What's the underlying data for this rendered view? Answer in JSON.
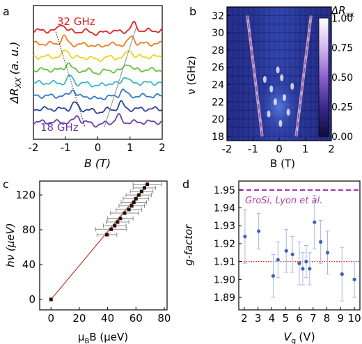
{
  "panel_labels": {
    "a": "a",
    "b": "b",
    "c": "c",
    "d": "d"
  },
  "chart_data": [
    {
      "panel": "a",
      "type": "line",
      "ylabel_main": "ΔR",
      "ylabel_sub": "XX",
      "ylabel_unit": "(a. u.)",
      "xlabel": "B (T)",
      "xlim": [
        -2,
        2
      ],
      "xticks": [
        "-2",
        "-1",
        "0",
        "1",
        "2"
      ],
      "annotation_top": "32 GHz",
      "annotation_bottom": "18 GHz",
      "series": [
        {
          "color": "#e0201f",
          "offset": 8,
          "peak_B": 1.12
        },
        {
          "color": "#f07b1c",
          "offset": 7,
          "peak_B": 1.05
        },
        {
          "color": "#f2d21a",
          "offset": 6,
          "peak_B": 0.98
        },
        {
          "color": "#62c23a",
          "offset": 5,
          "peak_B": 0.92
        },
        {
          "color": "#34b7c9",
          "offset": 4,
          "peak_B": 0.85
        },
        {
          "color": "#2d79c4",
          "offset": 3,
          "peak_B": 0.78
        },
        {
          "color": "#273f9a",
          "offset": 2,
          "peak_B": 0.72
        },
        {
          "color": "#6b3aa8",
          "offset": 1,
          "peak_B": 0.64
        }
      ],
      "guide_lines": [
        {
          "style": "dotted",
          "from": [
            -1.3,
            7.9
          ],
          "to": [
            -0.4,
            0.6
          ]
        },
        {
          "style": "solid-gray",
          "from": [
            0.2,
            0.6
          ],
          "to": [
            1.2,
            8.3
          ]
        }
      ]
    },
    {
      "panel": "b",
      "type": "heatmap",
      "xlabel": "B (T)",
      "ylabel": "ν (GHz)",
      "xlim": [
        -2,
        2
      ],
      "ylim": [
        17.5,
        33
      ],
      "xticks": [
        "-2",
        "-1",
        "0",
        "1",
        "2"
      ],
      "yticks": [
        "18",
        "20",
        "22",
        "24",
        "26",
        "28",
        "30",
        "32"
      ],
      "colorbar_title": "ΔR",
      "colorbar_sub": "xx",
      "colorbar_ticks": [
        "0.00",
        "0.25",
        "0.50",
        "0.75",
        "1.00"
      ],
      "colorbar_range": [
        0,
        1
      ],
      "resonance_lines": [
        {
          "B_at_18": -0.65,
          "B_at_32": -1.22
        },
        {
          "B_at_18": 0.65,
          "B_at_32": 1.22
        }
      ],
      "colors": {
        "low": "#181a70",
        "mid": "#3a56c8",
        "high": "#ffffff",
        "line": "#c2478c"
      }
    },
    {
      "panel": "c",
      "type": "scatter",
      "xlabel_pre": "μ",
      "xlabel_sub": "B",
      "xlabel_post": "B (μeV)",
      "ylabel": "hν (μeV)",
      "xlim": [
        -8,
        82
      ],
      "ylim": [
        -12,
        136
      ],
      "xticks": [
        "0",
        "20",
        "40",
        "60",
        "80"
      ],
      "yticks": [
        "0",
        "40",
        "80",
        "120"
      ],
      "points": [
        {
          "x": 0,
          "y": 0,
          "xerr": 0
        },
        {
          "x": 39.5,
          "y": 74.4,
          "xerr": 7
        },
        {
          "x": 42.5,
          "y": 80.6,
          "xerr": 11
        },
        {
          "x": 45,
          "y": 84.7,
          "xerr": 8
        },
        {
          "x": 47,
          "y": 88.9,
          "xerr": 8
        },
        {
          "x": 49,
          "y": 93,
          "xerr": 9
        },
        {
          "x": 52,
          "y": 99.2,
          "xerr": 10
        },
        {
          "x": 55,
          "y": 103.3,
          "xerr": 9
        },
        {
          "x": 57,
          "y": 107.5,
          "xerr": 9
        },
        {
          "x": 58.5,
          "y": 111.6,
          "xerr": 9
        },
        {
          "x": 60,
          "y": 115.7,
          "xerr": 9
        },
        {
          "x": 62,
          "y": 119.9,
          "xerr": 9
        },
        {
          "x": 64,
          "y": 124,
          "xerr": 8
        },
        {
          "x": 66,
          "y": 128.1,
          "xerr": 8
        },
        {
          "x": 68,
          "y": 132.3,
          "xerr": 10
        }
      ],
      "fit_line": {
        "from": [
          0,
          0
        ],
        "to": [
          68,
          132.3
        ],
        "color": "#b0412b"
      }
    },
    {
      "panel": "d",
      "type": "scatter",
      "xlabel": "V",
      "xlabel_sub": "g",
      "xlabel_unit": "(V)",
      "ylabel": "g-factor",
      "xlim": [
        1.6,
        10.4
      ],
      "ylim": [
        1.883,
        1.955
      ],
      "xticks": [
        "2",
        "3",
        "4",
        "5",
        "6",
        "7",
        "8",
        "9",
        "10"
      ],
      "yticks": [
        "1.89",
        "1.90",
        "1.91",
        "1.92",
        "1.93",
        "1.94",
        "1.95"
      ],
      "reference_line": {
        "y": 1.95,
        "label": "GroSi, Lyon et al.",
        "color": "#b040b0"
      },
      "mean_line": {
        "y": 1.91,
        "color": "#e02020"
      },
      "points": [
        {
          "x": 2.05,
          "y": 1.924,
          "err": 0.015
        },
        {
          "x": 3.05,
          "y": 1.927,
          "err": 0.01
        },
        {
          "x": 4.1,
          "y": 1.902,
          "err": 0.012
        },
        {
          "x": 4.45,
          "y": 1.911,
          "err": 0.01
        },
        {
          "x": 5.05,
          "y": 1.916,
          "err": 0.012
        },
        {
          "x": 5.5,
          "y": 1.914,
          "err": 0.01
        },
        {
          "x": 6.0,
          "y": 1.909,
          "err": 0.012
        },
        {
          "x": 6.25,
          "y": 1.906,
          "err": 0.009
        },
        {
          "x": 6.5,
          "y": 1.91,
          "err": 0.009
        },
        {
          "x": 6.75,
          "y": 1.906,
          "err": 0.009
        },
        {
          "x": 7.1,
          "y": 1.932,
          "err": 0.015
        },
        {
          "x": 7.55,
          "y": 1.921,
          "err": 0.012
        },
        {
          "x": 8.05,
          "y": 1.915,
          "err": 0.012
        },
        {
          "x": 9.1,
          "y": 1.903,
          "err": 0.015
        },
        {
          "x": 10.0,
          "y": 1.9,
          "err": 0.01
        }
      ],
      "point_color": "#3b62b5",
      "err_color": "#a9b6e0"
    }
  ]
}
